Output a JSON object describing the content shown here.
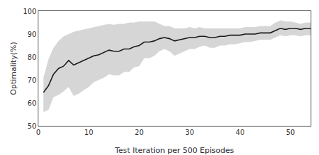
{
  "chart_data": {
    "type": "line",
    "title": "",
    "xlabel": "Test Iteration per 500 Episodes",
    "ylabel": "Optimality(%)",
    "x": [
      1,
      2,
      3,
      4,
      5,
      6,
      7,
      8,
      9,
      10,
      11,
      12,
      13,
      14,
      15,
      16,
      17,
      18,
      19,
      20,
      21,
      22,
      23,
      24,
      25,
      26,
      27,
      28,
      29,
      30,
      31,
      32,
      33,
      34,
      35,
      36,
      37,
      38,
      39,
      40,
      41,
      42,
      43,
      44,
      45,
      46,
      47,
      48,
      49,
      50,
      51,
      52,
      53,
      54
    ],
    "series": [
      {
        "type": "band",
        "color": "#c0c0c0",
        "upper": [
          71.0,
          79.0,
          84.0,
          87.0,
          89.0,
          90.0,
          91.0,
          91.5,
          92.0,
          92.5,
          93.0,
          93.5,
          94.0,
          94.5,
          94.0,
          94.5,
          94.5,
          95.0,
          95.0,
          95.5,
          95.5,
          95.5,
          95.5,
          94.5,
          93.5,
          93.5,
          92.5,
          92.5,
          92.5,
          93.0,
          92.5,
          93.0,
          92.5,
          92.5,
          92.5,
          92.5,
          92.5,
          92.5,
          92.5,
          92.5,
          93.0,
          93.0,
          93.0,
          93.5,
          93.5,
          93.5,
          95.0,
          96.0,
          95.5,
          95.5,
          95.0,
          94.5,
          95.0,
          95.0
        ],
        "lower": [
          56.0,
          57.0,
          62.5,
          63.5,
          65.0,
          67.0,
          63.0,
          64.0,
          65.5,
          67.0,
          69.0,
          70.0,
          71.0,
          72.5,
          72.0,
          72.0,
          73.5,
          73.5,
          75.5,
          76.0,
          79.5,
          79.5,
          80.5,
          82.5,
          83.5,
          82.5,
          80.5,
          81.5,
          82.5,
          83.5,
          83.5,
          84.5,
          85.0,
          84.0,
          84.0,
          85.0,
          85.0,
          85.5,
          85.5,
          86.0,
          86.5,
          86.5,
          87.0,
          87.5,
          87.5,
          87.5,
          88.5,
          89.5,
          89.0,
          89.5,
          89.5,
          89.0,
          89.5,
          89.5
        ]
      },
      {
        "type": "line",
        "color": "#1a1a1a",
        "values": [
          64.5,
          67.5,
          72.5,
          75.0,
          76.0,
          78.5,
          76.5,
          77.5,
          78.5,
          79.5,
          80.5,
          81.0,
          82.0,
          83.0,
          82.5,
          82.5,
          83.5,
          83.5,
          84.5,
          85.0,
          86.5,
          86.5,
          87.0,
          88.0,
          88.5,
          88.0,
          87.0,
          87.5,
          88.0,
          88.5,
          88.5,
          89.0,
          89.0,
          88.5,
          88.5,
          89.0,
          89.0,
          89.5,
          89.5,
          89.5,
          90.0,
          90.0,
          90.0,
          90.5,
          90.5,
          90.5,
          91.5,
          92.5,
          92.0,
          92.5,
          92.5,
          92.0,
          92.5,
          92.5
        ]
      }
    ],
    "xlim": [
      0,
      54
    ],
    "ylim": [
      50,
      100
    ],
    "xticks": [
      0,
      10,
      20,
      30,
      40,
      50
    ],
    "yticks": [
      50,
      60,
      70,
      80,
      90,
      100
    ],
    "grid": false
  }
}
